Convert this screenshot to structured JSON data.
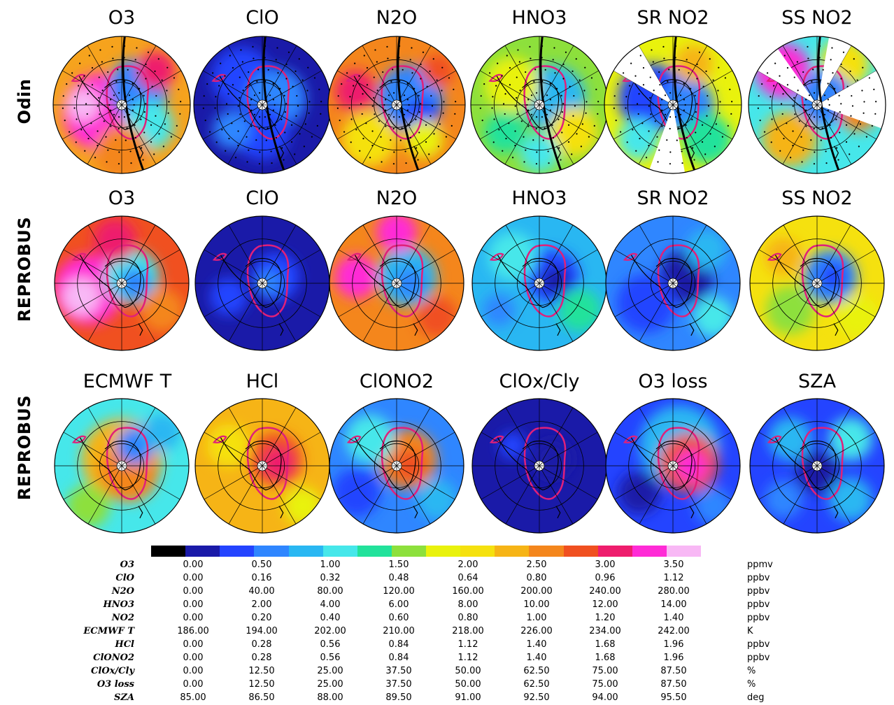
{
  "rows": [
    {
      "label": "Odin",
      "titles": [
        "O3",
        "ClO",
        "N2O",
        "HNO3",
        "SR NO2",
        "SS NO2"
      ]
    },
    {
      "label": "REPROBUS",
      "titles": [
        "O3",
        "ClO",
        "N2O",
        "HNO3",
        "SR NO2",
        "SS NO2"
      ]
    },
    {
      "label": "REPROBUS",
      "titles": [
        "ECMWF T",
        "HCl",
        "ClONO2",
        "ClOx/Cly",
        "O3 loss",
        "SZA"
      ]
    }
  ],
  "colorbar": {
    "colors": [
      "#000000",
      "#1a1aa8",
      "#2444ff",
      "#2f86ff",
      "#29b7f2",
      "#46e7ea",
      "#22e29b",
      "#8de03c",
      "#e9f20d",
      "#f5e10f",
      "#f6b416",
      "#f4861c",
      "#f05020",
      "#ee1d6d",
      "#ff2bd6",
      "#f8b8f5"
    ]
  },
  "legend": {
    "rows": [
      {
        "name": "O3",
        "values": [
          "0.00",
          "0.50",
          "1.00",
          "1.50",
          "2.00",
          "2.50",
          "3.00",
          "3.50"
        ],
        "unit": "ppmv"
      },
      {
        "name": "ClO",
        "values": [
          "0.00",
          "0.16",
          "0.32",
          "0.48",
          "0.64",
          "0.80",
          "0.96",
          "1.12"
        ],
        "unit": "ppbv"
      },
      {
        "name": "N2O",
        "values": [
          "0.00",
          "40.00",
          "80.00",
          "120.00",
          "160.00",
          "200.00",
          "240.00",
          "280.00"
        ],
        "unit": "ppbv"
      },
      {
        "name": "HNO3",
        "values": [
          "0.00",
          "2.00",
          "4.00",
          "6.00",
          "8.00",
          "10.00",
          "12.00",
          "14.00"
        ],
        "unit": "ppbv"
      },
      {
        "name": "NO2",
        "values": [
          "0.00",
          "0.20",
          "0.40",
          "0.60",
          "0.80",
          "1.00",
          "1.20",
          "1.40"
        ],
        "unit": "ppbv"
      },
      {
        "name": "ECMWF T",
        "values": [
          "186.00",
          "194.00",
          "202.00",
          "210.00",
          "218.00",
          "226.00",
          "234.00",
          "242.00"
        ],
        "unit": "K"
      },
      {
        "name": "HCl",
        "values": [
          "0.00",
          "0.28",
          "0.56",
          "0.84",
          "1.12",
          "1.40",
          "1.68",
          "1.96"
        ],
        "unit": "ppbv"
      },
      {
        "name": "ClONO2",
        "values": [
          "0.00",
          "0.28",
          "0.56",
          "0.84",
          "1.12",
          "1.40",
          "1.68",
          "1.96"
        ],
        "unit": "ppbv"
      },
      {
        "name": "ClOx/Cly",
        "values": [
          "0.00",
          "12.50",
          "25.00",
          "37.50",
          "50.00",
          "62.50",
          "75.00",
          "87.50"
        ],
        "unit": "%"
      },
      {
        "name": "O3 loss",
        "values": [
          "0.00",
          "12.50",
          "25.00",
          "37.50",
          "50.00",
          "62.50",
          "75.00",
          "87.50"
        ],
        "unit": "%"
      },
      {
        "name": "SZA",
        "values": [
          "85.00",
          "86.50",
          "88.00",
          "89.50",
          "91.00",
          "92.50",
          "94.00",
          "95.50"
        ],
        "unit": "deg"
      }
    ]
  },
  "maps": [
    {
      "row": 0,
      "col": 0,
      "base": "#f6a31d",
      "blobs": [
        [
          0.35,
          0.55,
          0.28,
          "#ff2bd6"
        ],
        [
          0.22,
          0.5,
          0.12,
          "#f8b8f5"
        ],
        [
          0.62,
          0.38,
          0.22,
          "#2f86ff"
        ],
        [
          0.7,
          0.65,
          0.18,
          "#46e7ea"
        ],
        [
          0.5,
          0.85,
          0.2,
          "#f4861c"
        ],
        [
          0.75,
          0.25,
          0.14,
          "#ee1d6d"
        ]
      ],
      "tracks": true,
      "blank": []
    },
    {
      "row": 0,
      "col": 1,
      "base": "#1a1aa8",
      "blobs": [
        [
          0.35,
          0.3,
          0.22,
          "#2444ff"
        ],
        [
          0.6,
          0.45,
          0.22,
          "#2f86ff"
        ],
        [
          0.5,
          0.7,
          0.2,
          "#2444ff"
        ],
        [
          0.28,
          0.68,
          0.14,
          "#2f86ff"
        ]
      ],
      "tracks": true,
      "blank": []
    },
    {
      "row": 0,
      "col": 2,
      "base": "#f4861c",
      "blobs": [
        [
          0.6,
          0.45,
          0.24,
          "#2f86ff"
        ],
        [
          0.68,
          0.58,
          0.13,
          "#2444ff"
        ],
        [
          0.3,
          0.75,
          0.2,
          "#f5e10f"
        ],
        [
          0.7,
          0.75,
          0.14,
          "#e9f20d"
        ],
        [
          0.2,
          0.4,
          0.15,
          "#ee1d6d"
        ],
        [
          0.8,
          0.25,
          0.12,
          "#f05020"
        ]
      ],
      "tracks": true,
      "blank": []
    },
    {
      "row": 0,
      "col": 3,
      "base": "#8de03c",
      "blobs": [
        [
          0.6,
          0.45,
          0.24,
          "#29b7f2"
        ],
        [
          0.3,
          0.35,
          0.2,
          "#e9f20d"
        ],
        [
          0.75,
          0.7,
          0.18,
          "#f5e10f"
        ],
        [
          0.25,
          0.7,
          0.15,
          "#22e29b"
        ],
        [
          0.5,
          0.85,
          0.14,
          "#46e7ea"
        ]
      ],
      "tracks": true,
      "blank": []
    },
    {
      "row": 0,
      "col": 4,
      "base": "#e9f20d",
      "blobs": [
        [
          0.35,
          0.45,
          0.25,
          "#2444ff"
        ],
        [
          0.6,
          0.5,
          0.2,
          "#2f86ff"
        ],
        [
          0.25,
          0.75,
          0.15,
          "#46e7ea"
        ],
        [
          0.75,
          0.75,
          0.18,
          "#22e29b"
        ],
        [
          0.65,
          0.2,
          0.14,
          "#f6b416"
        ]
      ],
      "tracks": true,
      "blank": [
        [
          170,
          200
        ],
        [
          300,
          330
        ]
      ]
    },
    {
      "row": 0,
      "col": 5,
      "base": "#46e7ea",
      "blobs": [
        [
          0.25,
          0.25,
          0.2,
          "#ff2bd6"
        ],
        [
          0.7,
          0.2,
          0.18,
          "#f5e10f"
        ],
        [
          0.3,
          0.75,
          0.2,
          "#f6b416"
        ],
        [
          0.55,
          0.45,
          0.2,
          "#2f86ff"
        ],
        [
          0.8,
          0.55,
          0.14,
          "#f4861c"
        ]
      ],
      "tracks": true,
      "blank": [
        [
          10,
          30
        ],
        [
          60,
          110
        ],
        [
          300,
          325
        ]
      ]
    },
    {
      "row": 1,
      "col": 0,
      "base": "#f05020",
      "blobs": [
        [
          0.25,
          0.55,
          0.26,
          "#ff2bd6"
        ],
        [
          0.2,
          0.6,
          0.14,
          "#f8b8f5"
        ],
        [
          0.58,
          0.45,
          0.2,
          "#46e7ea"
        ],
        [
          0.6,
          0.5,
          0.12,
          "#2f86ff"
        ],
        [
          0.8,
          0.7,
          0.16,
          "#f4861c"
        ],
        [
          0.45,
          0.18,
          0.16,
          "#ee1d6d"
        ]
      ],
      "tracks": false,
      "blank": []
    },
    {
      "row": 1,
      "col": 1,
      "base": "#1a1aa8",
      "blobs": [
        [
          0.6,
          0.45,
          0.18,
          "#2444ff"
        ],
        [
          0.55,
          0.5,
          0.1,
          "#2f86ff"
        ],
        [
          0.25,
          0.6,
          0.14,
          "#2444ff"
        ]
      ],
      "tracks": false,
      "blank": []
    },
    {
      "row": 1,
      "col": 2,
      "base": "#f4861c",
      "blobs": [
        [
          0.58,
          0.45,
          0.22,
          "#29b7f2"
        ],
        [
          0.6,
          0.5,
          0.12,
          "#2f86ff"
        ],
        [
          0.2,
          0.45,
          0.16,
          "#ff2bd6"
        ],
        [
          0.5,
          0.12,
          0.15,
          "#ff2bd6"
        ],
        [
          0.8,
          0.75,
          0.15,
          "#f05020"
        ]
      ],
      "tracks": false,
      "blank": []
    },
    {
      "row": 1,
      "col": 3,
      "base": "#29b7f2",
      "blobs": [
        [
          0.6,
          0.45,
          0.2,
          "#2444ff"
        ],
        [
          0.62,
          0.48,
          0.1,
          "#1a1aa8"
        ],
        [
          0.3,
          0.3,
          0.18,
          "#46e7ea"
        ],
        [
          0.8,
          0.7,
          0.16,
          "#22e29b"
        ],
        [
          0.2,
          0.7,
          0.12,
          "#2f86ff"
        ]
      ],
      "tracks": false,
      "blank": []
    },
    {
      "row": 1,
      "col": 4,
      "base": "#2f86ff",
      "blobs": [
        [
          0.6,
          0.45,
          0.2,
          "#1a1aa8"
        ],
        [
          0.3,
          0.65,
          0.22,
          "#2444ff"
        ],
        [
          0.75,
          0.25,
          0.15,
          "#29b7f2"
        ],
        [
          0.8,
          0.75,
          0.15,
          "#46e7ea"
        ]
      ],
      "tracks": false,
      "blank": []
    },
    {
      "row": 1,
      "col": 5,
      "base": "#f5e10f",
      "blobs": [
        [
          0.6,
          0.45,
          0.2,
          "#2f86ff"
        ],
        [
          0.62,
          0.45,
          0.1,
          "#2444ff"
        ],
        [
          0.3,
          0.7,
          0.18,
          "#8de03c"
        ],
        [
          0.8,
          0.75,
          0.16,
          "#e9f20d"
        ],
        [
          0.25,
          0.3,
          0.14,
          "#f6b416"
        ]
      ],
      "tracks": false,
      "blank": []
    },
    {
      "row": 2,
      "col": 0,
      "base": "#46e7ea",
      "blobs": [
        [
          0.5,
          0.45,
          0.3,
          "#f6b416"
        ],
        [
          0.55,
          0.55,
          0.22,
          "#f4861c"
        ],
        [
          0.6,
          0.35,
          0.14,
          "#2f86ff"
        ],
        [
          0.25,
          0.8,
          0.16,
          "#8de03c"
        ],
        [
          0.8,
          0.25,
          0.14,
          "#29b7f2"
        ]
      ],
      "tracks": false,
      "blank": []
    },
    {
      "row": 2,
      "col": 1,
      "base": "#f6b416",
      "blobs": [
        [
          0.6,
          0.45,
          0.2,
          "#f05020"
        ],
        [
          0.62,
          0.48,
          0.12,
          "#ee1d6d"
        ],
        [
          0.25,
          0.35,
          0.16,
          "#f5e10f"
        ],
        [
          0.8,
          0.8,
          0.14,
          "#e9f20d"
        ]
      ],
      "tracks": false,
      "blank": []
    },
    {
      "row": 2,
      "col": 2,
      "base": "#2f86ff",
      "blobs": [
        [
          0.58,
          0.45,
          0.22,
          "#f4861c"
        ],
        [
          0.6,
          0.5,
          0.12,
          "#f05020"
        ],
        [
          0.3,
          0.3,
          0.18,
          "#46e7ea"
        ],
        [
          0.2,
          0.7,
          0.18,
          "#2444ff"
        ],
        [
          0.8,
          0.75,
          0.15,
          "#29b7f2"
        ]
      ],
      "tracks": false,
      "blank": []
    },
    {
      "row": 2,
      "col": 3,
      "base": "#1a1aa8",
      "blobs": [
        [
          0.6,
          0.45,
          0.14,
          "#1a1aa8"
        ],
        [
          0.3,
          0.35,
          0.1,
          "#2444ff"
        ]
      ],
      "tracks": false,
      "blank": []
    },
    {
      "row": 2,
      "col": 4,
      "base": "#2444ff",
      "blobs": [
        [
          0.55,
          0.35,
          0.3,
          "#29b7f2"
        ],
        [
          0.62,
          0.48,
          0.22,
          "#f05020"
        ],
        [
          0.64,
          0.5,
          0.12,
          "#ff2bd6"
        ],
        [
          0.25,
          0.7,
          0.16,
          "#1a1aa8"
        ],
        [
          0.8,
          0.8,
          0.14,
          "#2f86ff"
        ]
      ],
      "tracks": false,
      "blank": []
    },
    {
      "row": 2,
      "col": 5,
      "base": "#2444ff",
      "blobs": [
        [
          0.3,
          0.3,
          0.16,
          "#29b7f2"
        ],
        [
          0.75,
          0.3,
          0.16,
          "#46e7ea"
        ],
        [
          0.25,
          0.75,
          0.14,
          "#2f86ff"
        ],
        [
          0.75,
          0.75,
          0.16,
          "#29b7f2"
        ],
        [
          0.5,
          0.55,
          0.16,
          "#1a1aa8"
        ]
      ],
      "tracks": false,
      "blank": []
    }
  ]
}
